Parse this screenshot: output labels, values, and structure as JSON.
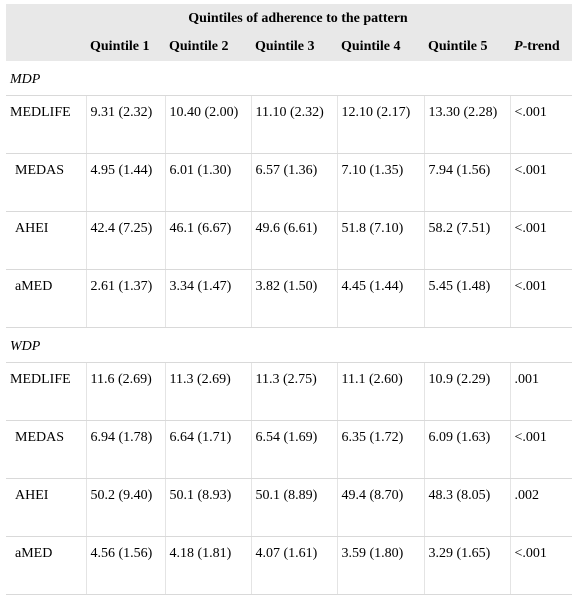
{
  "header": {
    "span_title": "Quintiles of adherence to the pattern",
    "columns": [
      "",
      "Quintile 1",
      "Quintile 2",
      "Quintile 3",
      "Quintile 4",
      "Quintile 5",
      "-trend"
    ],
    "ptrend_italic": "P"
  },
  "sections": [
    {
      "label": "MDP",
      "rows": [
        {
          "name": "MEDLIFE",
          "cells": [
            "9.31 (2.32)",
            "10.40 (2.00)",
            "11.10 (2.32)",
            "12.10 (2.17)",
            "13.30 (2.28)",
            "<.001"
          ]
        },
        {
          "name": "MEDAS",
          "cells": [
            "4.95 (1.44)",
            "6.01 (1.30)",
            "6.57 (1.36)",
            "7.10 (1.35)",
            "7.94 (1.56)",
            "<.001"
          ]
        },
        {
          "name": "AHEI",
          "cells": [
            "42.4 (7.25)",
            "46.1 (6.67)",
            "49.6 (6.61)",
            "51.8 (7.10)",
            "58.2 (7.51)",
            "<.001"
          ]
        },
        {
          "name": "aMED",
          "cells": [
            "2.61 (1.37)",
            "3.34 (1.47)",
            "3.82 (1.50)",
            "4.45 (1.44)",
            "5.45 (1.48)",
            "<.001"
          ]
        }
      ]
    },
    {
      "label": "WDP",
      "rows": [
        {
          "name": "MEDLIFE",
          "cells": [
            "11.6 (2.69)",
            "11.3 (2.69)",
            "11.3 (2.75)",
            "11.1 (2.60)",
            "10.9 (2.29)",
            ".001"
          ]
        },
        {
          "name": "MEDAS",
          "cells": [
            "6.94 (1.78)",
            "6.64 (1.71)",
            "6.54 (1.69)",
            "6.35 (1.72)",
            "6.09 (1.63)",
            "<.001"
          ]
        },
        {
          "name": "AHEI",
          "cells": [
            "50.2 (9.40)",
            "50.1 (8.93)",
            "50.1 (8.89)",
            "49.4 (8.70)",
            "48.3 (8.05)",
            ".002"
          ]
        },
        {
          "name": "aMED",
          "cells": [
            "4.56 (1.56)",
            "4.18 (1.81)",
            "4.07 (1.61)",
            "3.59 (1.80)",
            "3.29 (1.65)",
            "<.001"
          ]
        }
      ]
    }
  ]
}
